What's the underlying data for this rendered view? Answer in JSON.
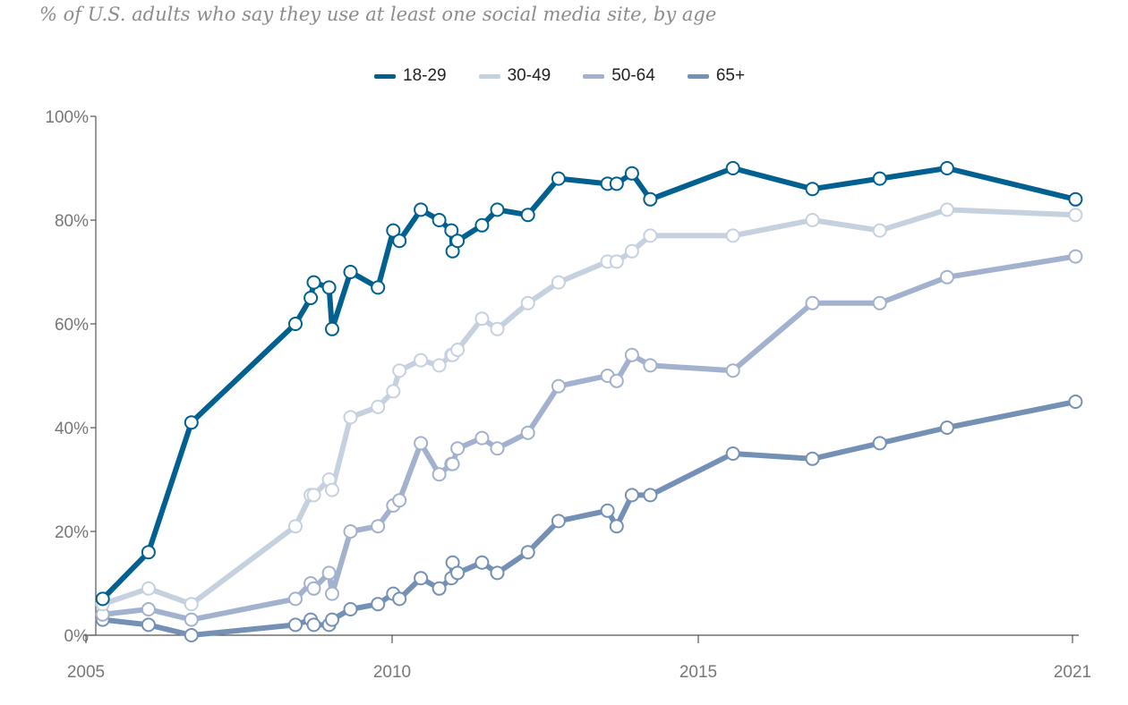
{
  "subtitle": "% of U.S. adults who say they use at least one social media site, by age",
  "chart_data": {
    "type": "line",
    "title": "",
    "xlabel": "",
    "ylabel": "",
    "xlim": [
      2005,
      2021
    ],
    "ylim": [
      0,
      100
    ],
    "x_ticks": [
      {
        "value": 2005,
        "label": "2005"
      },
      {
        "value": 2010,
        "label": "2010"
      },
      {
        "value": 2015,
        "label": "2015"
      },
      {
        "value": 2021,
        "label": "2021"
      }
    ],
    "y_ticks": [
      {
        "value": 0,
        "label": "0%"
      },
      {
        "value": 20,
        "label": "20%"
      },
      {
        "value": 40,
        "label": "40%"
      },
      {
        "value": 60,
        "label": "60%"
      },
      {
        "value": 80,
        "label": "80%"
      },
      {
        "value": 100,
        "label": "100%"
      }
    ],
    "grid": false,
    "legend": "top",
    "x": [
      2005.2,
      2005.95,
      2006.65,
      2008.35,
      2008.6,
      2008.65,
      2008.9,
      2008.95,
      2009.25,
      2009.7,
      2009.95,
      2010.05,
      2010.4,
      2010.7,
      2010.9,
      2010.92,
      2011.0,
      2011.4,
      2011.65,
      2012.15,
      2012.65,
      2013.45,
      2013.6,
      2013.85,
      2014.15,
      2015.5,
      2016.8,
      2017.9,
      2019.0,
      2021.1
    ],
    "series": [
      {
        "name": "18-29",
        "color": "#00608f",
        "values": [
          7,
          16,
          41,
          60,
          65,
          68,
          67,
          59,
          70,
          67,
          78,
          76,
          82,
          80,
          78,
          74,
          76,
          79,
          82,
          81,
          88,
          87,
          87,
          89,
          84,
          90,
          86,
          88,
          90,
          84
        ]
      },
      {
        "name": "30-49",
        "color": "#c6d1e0",
        "values": [
          6,
          9,
          6,
          21,
          27,
          27,
          30,
          28,
          42,
          44,
          47,
          51,
          53,
          52,
          54,
          54,
          55,
          61,
          59,
          64,
          68,
          72,
          72,
          74,
          77,
          77,
          80,
          78,
          82,
          81
        ]
      },
      {
        "name": "50-64",
        "color": "#a2b1cd",
        "values": [
          4,
          5,
          3,
          7,
          10,
          9,
          12,
          8,
          20,
          21,
          25,
          26,
          37,
          31,
          33,
          33,
          36,
          38,
          36,
          39,
          48,
          50,
          49,
          54,
          52,
          51,
          64,
          64,
          69,
          73
        ]
      },
      {
        "name": "65+",
        "color": "#7590b5",
        "values": [
          3,
          2,
          0,
          2,
          3,
          2,
          2,
          3,
          5,
          6,
          8,
          7,
          11,
          9,
          11,
          14,
          12,
          14,
          12,
          16,
          22,
          24,
          21,
          27,
          27,
          35,
          34,
          37,
          40,
          45
        ]
      }
    ]
  }
}
